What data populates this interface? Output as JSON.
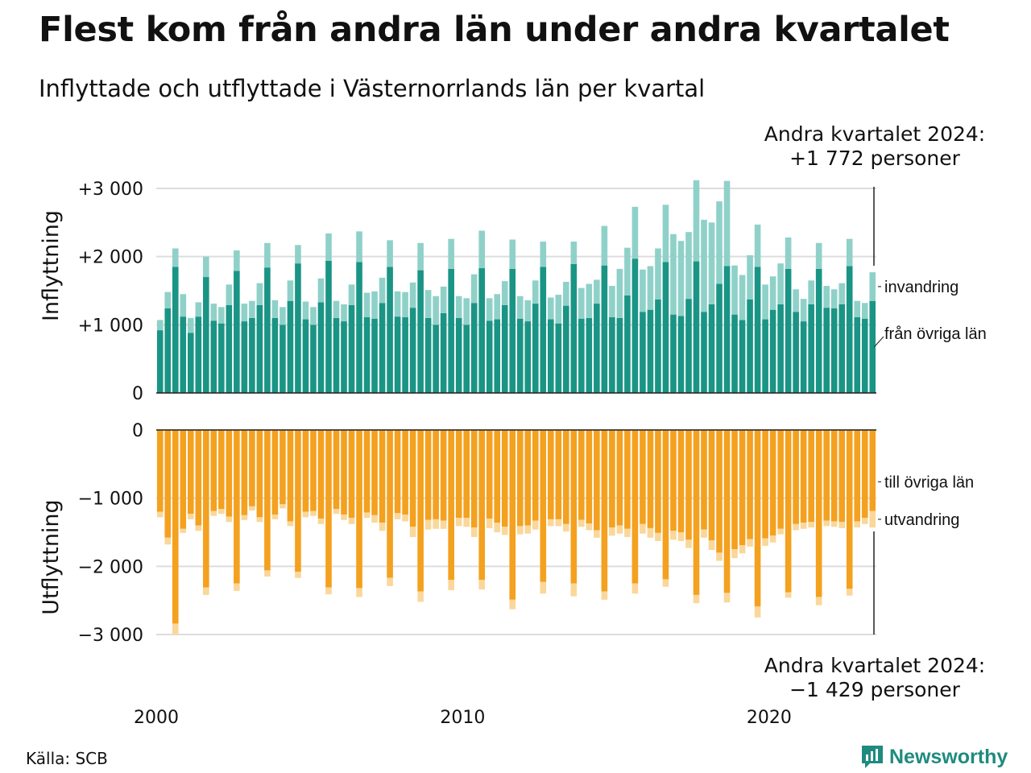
{
  "title": "Flest kom från andra län under andra kvartalet",
  "subtitle": "Inflyttade och utflyttade i Västernorrlands län per kvartal",
  "annotations": {
    "top_line1": "Andra kvartalet 2024:",
    "top_line2": "+1 772 personer",
    "bottom_line1": "Andra kvartalet 2024:",
    "bottom_line2": "−1 429 personer"
  },
  "source": "Källa: SCB",
  "brand": {
    "name": "Newsworthy",
    "icon": "newsworthy-logo-icon"
  },
  "colors": {
    "in_main": "#1a9485",
    "in_light": "#8fd1c9",
    "out_main": "#f4a11f",
    "out_light": "#fad79a",
    "grid": "#dddddd",
    "baseline": "#222222"
  },
  "chart_data": [
    {
      "type": "bar",
      "stacked": true,
      "panel": "Inflyttning",
      "ylabel": "Inflyttning",
      "ylim": [
        0,
        3000
      ],
      "yticks": [
        {
          "value": 0,
          "label": "0"
        },
        {
          "value": 1000,
          "label": "+1 000"
        },
        {
          "value": 2000,
          "label": "+2 000"
        },
        {
          "value": 3000,
          "label": "+3 000"
        }
      ],
      "x_start": "2000-Q1",
      "x_end": "2024-Q2",
      "xticks": [
        {
          "value": 2000,
          "label": "2000"
        },
        {
          "value": 2010,
          "label": "2010"
        },
        {
          "value": 2020,
          "label": "2020"
        }
      ],
      "grid": true,
      "legend": "direct labels, right",
      "series": [
        {
          "name": "från övriga län",
          "values": [
            920,
            1240,
            1850,
            1120,
            880,
            1120,
            1700,
            1060,
            1020,
            1290,
            1790,
            1050,
            1100,
            1290,
            1840,
            1100,
            1000,
            1350,
            1900,
            1080,
            1000,
            1330,
            1940,
            1100,
            1050,
            1290,
            1920,
            1110,
            1090,
            1320,
            1850,
            1120,
            1110,
            1250,
            1800,
            1100,
            1000,
            1170,
            1820,
            1100,
            1000,
            1320,
            1830,
            1060,
            1080,
            1290,
            1820,
            1090,
            1050,
            1310,
            1850,
            1080,
            1020,
            1280,
            1890,
            1090,
            1100,
            1310,
            1870,
            1110,
            1100,
            1430,
            1970,
            1190,
            1220,
            1370,
            1920,
            1150,
            1130,
            1380,
            1930,
            1190,
            1300,
            1600,
            1860,
            1150,
            1070,
            1370,
            1850,
            1080,
            1220,
            1300,
            1820,
            1190,
            1050,
            1300,
            1820,
            1250,
            1240,
            1300,
            1860,
            1110,
            1090,
            1350
          ]
        },
        {
          "name": "invandring",
          "values": [
            150,
            240,
            270,
            330,
            220,
            210,
            300,
            250,
            240,
            300,
            300,
            260,
            250,
            320,
            360,
            260,
            260,
            300,
            270,
            260,
            260,
            350,
            400,
            250,
            250,
            300,
            450,
            360,
            400,
            370,
            390,
            370,
            370,
            370,
            400,
            410,
            420,
            390,
            440,
            320,
            390,
            420,
            550,
            330,
            370,
            350,
            430,
            330,
            310,
            340,
            370,
            320,
            420,
            350,
            330,
            450,
            500,
            350,
            580,
            460,
            720,
            700,
            760,
            620,
            640,
            750,
            840,
            1180,
            1100,
            980,
            1190,
            1350,
            1200,
            1210,
            1250,
            720,
            660,
            650,
            620,
            510,
            490,
            600,
            460,
            330,
            330,
            350,
            380,
            320,
            280,
            310,
            400,
            240,
            230,
            420
          ]
        }
      ]
    },
    {
      "type": "bar",
      "stacked": true,
      "panel": "Utflyttning",
      "ylabel": "Utflyttning",
      "ylim": [
        -3000,
        0
      ],
      "yticks": [
        {
          "value": 0,
          "label": "0"
        },
        {
          "value": -1000,
          "label": "−1 000"
        },
        {
          "value": -2000,
          "label": "−2 000"
        },
        {
          "value": -3000,
          "label": "−3 000"
        }
      ],
      "x_start": "2000-Q1",
      "x_end": "2024-Q2",
      "xticks": [
        {
          "value": 2000,
          "label": "2000"
        },
        {
          "value": 2010,
          "label": "2010"
        },
        {
          "value": 2020,
          "label": "2020"
        }
      ],
      "grid": true,
      "legend": "direct labels, right",
      "series": [
        {
          "name": "till övriga län",
          "values": [
            -1200,
            -1580,
            -2840,
            -1450,
            -1230,
            -1400,
            -2310,
            -1190,
            -1160,
            -1270,
            -2250,
            -1250,
            -1120,
            -1280,
            -2060,
            -1240,
            -1090,
            -1340,
            -2080,
            -1200,
            -1190,
            -1300,
            -2310,
            -1160,
            -1240,
            -1290,
            -2320,
            -1210,
            -1250,
            -1360,
            -2170,
            -1220,
            -1240,
            -1420,
            -2370,
            -1320,
            -1310,
            -1330,
            -2200,
            -1290,
            -1290,
            -1430,
            -2200,
            -1300,
            -1360,
            -1420,
            -2490,
            -1410,
            -1400,
            -1330,
            -2230,
            -1310,
            -1310,
            -1380,
            -2250,
            -1320,
            -1370,
            -1470,
            -2370,
            -1430,
            -1400,
            -1450,
            -2250,
            -1380,
            -1440,
            -1510,
            -2190,
            -1480,
            -1500,
            -1610,
            -2420,
            -1460,
            -1620,
            -1800,
            -2390,
            -1750,
            -1690,
            -1600,
            -2590,
            -1590,
            -1550,
            -1450,
            -2380,
            -1380,
            -1360,
            -1350,
            -2450,
            -1330,
            -1340,
            -1350,
            -2330,
            -1340,
            -1290,
            -1190
          ]
        },
        {
          "name": "utvandring",
          "values": [
            -80,
            -100,
            -160,
            -60,
            -80,
            -80,
            -110,
            -70,
            -70,
            -80,
            -110,
            -70,
            -60,
            -70,
            -90,
            -70,
            -60,
            -70,
            -90,
            -80,
            -70,
            -80,
            -100,
            -70,
            -80,
            -90,
            -130,
            -80,
            -110,
            -120,
            -120,
            -90,
            -100,
            -150,
            -150,
            -140,
            -140,
            -120,
            -150,
            -120,
            -130,
            -140,
            -140,
            -140,
            -140,
            -120,
            -140,
            -120,
            -120,
            -130,
            -170,
            -100,
            -100,
            -110,
            -190,
            -100,
            -100,
            -110,
            -120,
            -120,
            -120,
            -120,
            -150,
            -140,
            -140,
            -120,
            -110,
            -130,
            -130,
            -120,
            -120,
            -120,
            -140,
            -120,
            -140,
            -130,
            -120,
            -110,
            -160,
            -110,
            -100,
            -80,
            -80,
            -90,
            -90,
            -80,
            -120,
            -80,
            -80,
            -90,
            -100,
            -90,
            -90,
            -240
          ]
        }
      ]
    }
  ]
}
